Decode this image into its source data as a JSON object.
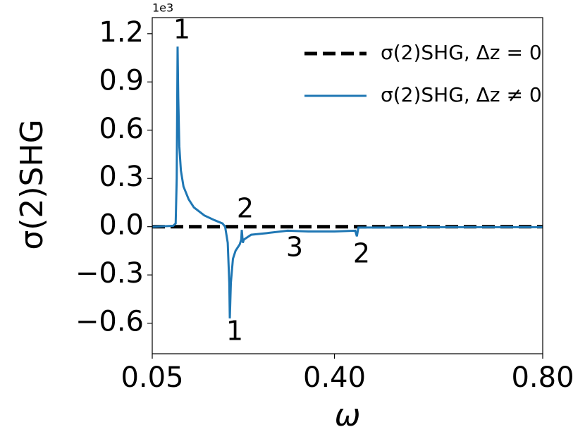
{
  "chart_data": {
    "type": "line",
    "x_label": "ω",
    "y_label": "σ(2)SHG",
    "y_offset_label": "1e3",
    "xlim": [
      0.05,
      0.8
    ],
    "xticks": [
      0.05,
      {
        "value": 0.4,
        "label": "0.40"
      },
      {
        "value": 0.8,
        "label": "0.80"
      }
    ],
    "ylim": [
      -0.79,
      1.3
    ],
    "yticks": [
      1.2,
      0.9,
      0.6,
      0.3,
      {
        "value": 0,
        "label": "0.0"
      },
      {
        "value": -0.3,
        "label": "−0.3"
      },
      {
        "value": -0.6,
        "label": "−0.6"
      }
    ],
    "legend": "upper right",
    "annotations": [
      "1",
      "1",
      "2",
      "3",
      "2"
    ],
    "series": [
      {
        "name": "σ(2)SHG, Δz = 0",
        "color": "#000000",
        "dashed": true,
        "x": [
          0.05,
          0.8
        ],
        "values": [
          0,
          0
        ]
      },
      {
        "name": "σ(2)SHG, Δz ≠ 0",
        "color": "#1f77b4",
        "dashed": false,
        "x": [
          0.05,
          0.09,
          0.095,
          0.097,
          0.0987,
          0.1,
          0.102,
          0.105,
          0.11,
          0.12,
          0.13,
          0.15,
          0.17,
          0.185,
          0.19,
          0.195,
          0.198,
          0.199,
          0.201,
          0.205,
          0.21,
          0.218,
          0.221,
          0.222,
          0.224,
          0.226,
          0.24,
          0.27,
          0.31,
          0.35,
          0.4,
          0.44,
          0.443,
          0.446,
          0.5,
          0.6,
          0.8
        ],
        "values": [
          0,
          0.005,
          0.02,
          0.3,
          1.12,
          0.8,
          0.5,
          0.35,
          0.25,
          0.17,
          0.12,
          0.07,
          0.04,
          0.02,
          0,
          -0.1,
          -0.35,
          -0.57,
          -0.35,
          -0.2,
          -0.15,
          -0.11,
          -0.08,
          -0.02,
          -0.1,
          -0.08,
          -0.05,
          -0.04,
          -0.025,
          -0.03,
          -0.03,
          -0.025,
          -0.06,
          -0.005,
          -0.005,
          -0.003,
          -0.003
        ]
      }
    ]
  }
}
